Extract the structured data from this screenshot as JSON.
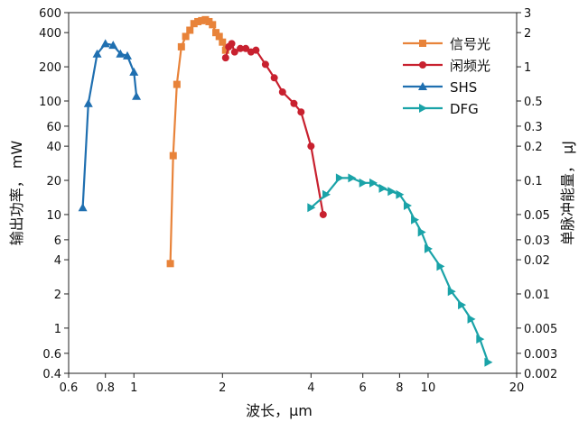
{
  "chart_data": {
    "type": "line",
    "title": "",
    "xlabel": "波长，μm",
    "ylabel_left": "输出功率， mW",
    "ylabel_right": "单脉冲能量， μJ",
    "x_scale": "log",
    "y_scale": "log",
    "xlim": [
      0.6,
      20
    ],
    "ylim_left": [
      0.4,
      600
    ],
    "ylim_right": [
      0.002,
      3
    ],
    "x_ticks": [
      0.6,
      0.8,
      1,
      2,
      4,
      6,
      8,
      10,
      20
    ],
    "x_tick_labels": [
      "0.6",
      "0.8",
      "1",
      "2",
      "4",
      "6",
      "8",
      "10",
      "20"
    ],
    "y_left_ticks": [
      0.4,
      0.6,
      1,
      2,
      4,
      6,
      10,
      20,
      40,
      60,
      100,
      200,
      400,
      600
    ],
    "y_left_tick_labels": [
      "0.4",
      "0.6",
      "1",
      "2",
      "4",
      "6",
      "10",
      "20",
      "40",
      "60",
      "100",
      "200",
      "400",
      "600"
    ],
    "y_right_ticks": [
      0.002,
      0.003,
      0.005,
      0.01,
      0.02,
      0.03,
      0.05,
      0.1,
      0.2,
      0.3,
      0.5,
      1,
      2,
      3
    ],
    "y_right_tick_labels": [
      "0.002",
      "0.003",
      "0.005",
      "0.01",
      "0.02",
      "0.03",
      "0.05",
      "0.1",
      "0.2",
      "0.3",
      "0.5",
      "1",
      "2",
      "3"
    ],
    "grid": false,
    "legend_position": "top-right",
    "series": [
      {
        "name": "信号光",
        "color": "#E8833A",
        "marker": "square",
        "x": [
          1.33,
          1.36,
          1.4,
          1.45,
          1.5,
          1.55,
          1.6,
          1.65,
          1.7,
          1.75,
          1.8,
          1.85,
          1.9,
          1.95,
          2.0,
          2.05
        ],
        "y": [
          3.7,
          33,
          140,
          300,
          370,
          420,
          480,
          500,
          510,
          520,
          500,
          470,
          400,
          370,
          330,
          280
        ]
      },
      {
        "name": "闲频光",
        "color": "#C8212F",
        "marker": "circle",
        "x": [
          2.05,
          2.1,
          2.15,
          2.2,
          2.3,
          2.4,
          2.5,
          2.6,
          2.8,
          3.0,
          3.2,
          3.5,
          3.7,
          4.0,
          4.4
        ],
        "y": [
          240,
          300,
          320,
          270,
          290,
          290,
          270,
          280,
          210,
          160,
          120,
          95,
          80,
          40,
          10
        ]
      },
      {
        "name": "SHS",
        "color": "#1F6FB0",
        "marker": "triangle-up",
        "x": [
          0.67,
          0.7,
          0.75,
          0.8,
          0.85,
          0.9,
          0.95,
          1.0,
          1.02
        ],
        "y": [
          11.5,
          95,
          260,
          320,
          310,
          260,
          250,
          180,
          110
        ]
      },
      {
        "name": "DFG",
        "color": "#1AA3A8",
        "marker": "triangle-right",
        "x": [
          4.0,
          4.5,
          5.0,
          5.5,
          6.0,
          6.5,
          7.0,
          7.5,
          8.0,
          8.5,
          9.0,
          9.5,
          10.0,
          11.0,
          12.0,
          13.0,
          14.0,
          15.0,
          16.0
        ],
        "y": [
          11.5,
          15,
          21,
          21,
          19,
          19,
          17,
          16,
          15,
          12,
          9,
          7,
          5,
          3.5,
          2.1,
          1.6,
          1.2,
          0.8,
          0.5
        ]
      }
    ]
  }
}
